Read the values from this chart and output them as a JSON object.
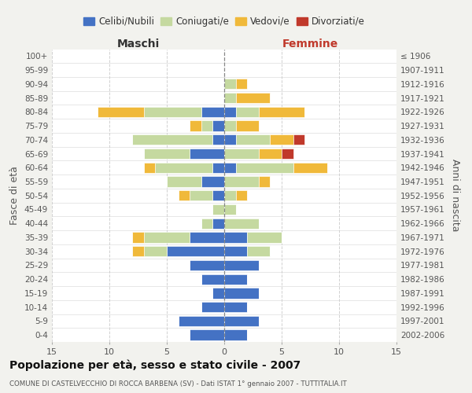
{
  "age_groups": [
    "0-4",
    "5-9",
    "10-14",
    "15-19",
    "20-24",
    "25-29",
    "30-34",
    "35-39",
    "40-44",
    "45-49",
    "50-54",
    "55-59",
    "60-64",
    "65-69",
    "70-74",
    "75-79",
    "80-84",
    "85-89",
    "90-94",
    "95-99",
    "100+"
  ],
  "birth_years": [
    "2002-2006",
    "1997-2001",
    "1992-1996",
    "1987-1991",
    "1982-1986",
    "1977-1981",
    "1972-1976",
    "1967-1971",
    "1962-1966",
    "1957-1961",
    "1952-1956",
    "1947-1951",
    "1942-1946",
    "1937-1941",
    "1932-1936",
    "1927-1931",
    "1922-1926",
    "1917-1921",
    "1912-1916",
    "1907-1911",
    "≤ 1906"
  ],
  "male": {
    "celibi": [
      3,
      4,
      2,
      1,
      2,
      3,
      5,
      3,
      1,
      0,
      1,
      2,
      1,
      3,
      1,
      1,
      2,
      0,
      0,
      0,
      0
    ],
    "coniugati": [
      0,
      0,
      0,
      0,
      0,
      0,
      2,
      4,
      1,
      1,
      2,
      3,
      5,
      4,
      7,
      1,
      5,
      0,
      0,
      0,
      0
    ],
    "vedovi": [
      0,
      0,
      0,
      0,
      0,
      0,
      1,
      1,
      0,
      0,
      1,
      0,
      1,
      0,
      0,
      1,
      4,
      0,
      0,
      0,
      0
    ],
    "divorziati": [
      0,
      0,
      0,
      0,
      0,
      0,
      0,
      0,
      0,
      0,
      0,
      0,
      0,
      0,
      0,
      0,
      0,
      0,
      0,
      0,
      0
    ]
  },
  "female": {
    "celibi": [
      2,
      3,
      2,
      3,
      2,
      3,
      2,
      2,
      0,
      0,
      0,
      0,
      1,
      0,
      1,
      0,
      1,
      0,
      0,
      0,
      0
    ],
    "coniugati": [
      0,
      0,
      0,
      0,
      0,
      0,
      2,
      3,
      3,
      1,
      1,
      3,
      5,
      3,
      3,
      1,
      2,
      1,
      1,
      0,
      0
    ],
    "vedovi": [
      0,
      0,
      0,
      0,
      0,
      0,
      0,
      0,
      0,
      0,
      1,
      1,
      3,
      2,
      2,
      2,
      4,
      3,
      1,
      0,
      0
    ],
    "divorziati": [
      0,
      0,
      0,
      0,
      0,
      0,
      0,
      0,
      0,
      0,
      0,
      0,
      0,
      1,
      1,
      0,
      0,
      0,
      0,
      0,
      0
    ]
  },
  "colors": {
    "celibi": "#4472c4",
    "coniugati": "#c5d9a0",
    "vedovi": "#f0b93a",
    "divorziati": "#c0392b"
  },
  "xlim": 15,
  "title": "Popolazione per età, sesso e stato civile - 2007",
  "subtitle": "COMUNE DI CASTELVECCHIO DI ROCCA BARBENA (SV) - Dati ISTAT 1° gennaio 2007 - TUTTITALIA.IT",
  "ylabel_left": "Fasce di età",
  "ylabel_right": "Anni di nascita",
  "label_maschi": "Maschi",
  "label_femmine": "Femmine",
  "legend_labels": [
    "Celibi/Nubili",
    "Coniugati/e",
    "Vedovi/e",
    "Divorziati/e"
  ],
  "bg_color": "#f2f2ee",
  "plot_bg_color": "#ffffff"
}
